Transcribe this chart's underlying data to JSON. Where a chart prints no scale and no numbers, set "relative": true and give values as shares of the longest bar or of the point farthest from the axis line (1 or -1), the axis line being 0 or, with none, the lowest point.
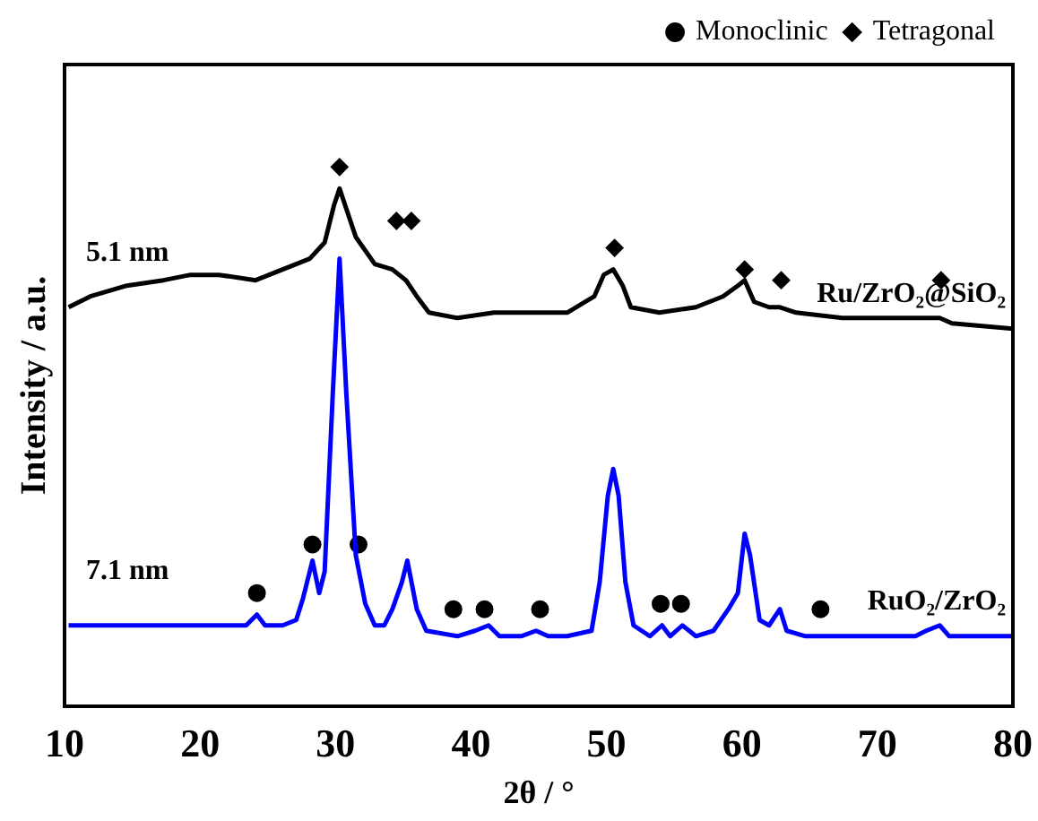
{
  "chart_data": {
    "type": "line",
    "xlabel": "2θ / °",
    "ylabel": "Intensity / a.u.",
    "xlim": [
      10,
      80
    ],
    "xticks": [
      10,
      20,
      30,
      40,
      50,
      60,
      70,
      80
    ],
    "relative": true,
    "grid": false,
    "legend": "top right",
    "line_style": "solid",
    "annotations": [
      "5.1 nm",
      "7.1 nm"
    ],
    "series": [
      {
        "name": "Ru/ZrO₂@SiO₂",
        "color": "#000000",
        "marker": "none",
        "x": [
          10.3,
          11.9,
          14.6,
          17.3,
          19.3,
          21.4,
          24.1,
          26.1,
          28.1,
          29.2,
          29.9,
          30.3,
          30.7,
          31.5,
          32.9,
          34.2,
          35.2,
          36.0,
          36.9,
          39.0,
          41.7,
          44.4,
          47.1,
          49.1,
          49.8,
          50.5,
          51.2,
          51.8,
          53.9,
          56.6,
          58.6,
          59.7,
          60.2,
          60.9,
          62.0,
          62.8,
          64.0,
          67.4,
          71.5,
          74.6,
          75.5,
          80.0
        ],
        "values": [
          0.74,
          0.76,
          0.78,
          0.79,
          0.8,
          0.8,
          0.79,
          0.81,
          0.83,
          0.86,
          0.93,
          0.96,
          0.93,
          0.87,
          0.82,
          0.81,
          0.79,
          0.76,
          0.73,
          0.72,
          0.73,
          0.73,
          0.73,
          0.76,
          0.8,
          0.81,
          0.78,
          0.74,
          0.73,
          0.74,
          0.76,
          0.78,
          0.79,
          0.75,
          0.74,
          0.74,
          0.73,
          0.72,
          0.72,
          0.72,
          0.71,
          0.7
        ]
      },
      {
        "name": "RuO₂/ZrO₂",
        "color": "#0000ff",
        "marker": "none",
        "x": [
          10.3,
          14.6,
          17.3,
          21.4,
          23.4,
          24.2,
          24.8,
          26.1,
          27.1,
          27.6,
          28.3,
          28.8,
          29.2,
          29.8,
          30.3,
          30.8,
          31.5,
          32.2,
          32.9,
          33.6,
          34.2,
          34.9,
          35.3,
          36.0,
          36.7,
          39.0,
          40.3,
          41.3,
          42.1,
          43.7,
          44.8,
          45.7,
          47.1,
          48.9,
          49.5,
          50.1,
          50.5,
          50.9,
          51.4,
          52.0,
          53.2,
          54.1,
          54.7,
          55.6,
          56.6,
          57.9,
          59.0,
          59.7,
          60.2,
          60.6,
          61.3,
          62.0,
          62.8,
          63.3,
          64.7,
          67.4,
          70.1,
          72.8,
          73.6,
          74.6,
          75.3,
          76.9,
          80.0
        ],
        "values": [
          0.15,
          0.15,
          0.15,
          0.15,
          0.15,
          0.17,
          0.15,
          0.15,
          0.16,
          0.2,
          0.27,
          0.21,
          0.25,
          0.58,
          0.83,
          0.58,
          0.28,
          0.19,
          0.15,
          0.15,
          0.18,
          0.23,
          0.27,
          0.18,
          0.14,
          0.13,
          0.14,
          0.15,
          0.13,
          0.13,
          0.14,
          0.13,
          0.13,
          0.14,
          0.23,
          0.39,
          0.44,
          0.39,
          0.23,
          0.15,
          0.13,
          0.15,
          0.13,
          0.15,
          0.13,
          0.14,
          0.18,
          0.21,
          0.32,
          0.28,
          0.16,
          0.15,
          0.18,
          0.14,
          0.13,
          0.13,
          0.13,
          0.13,
          0.14,
          0.15,
          0.13,
          0.13,
          0.13
        ]
      },
      {
        "name": "Monoclinic",
        "type": "scatter",
        "color": "#000000",
        "marker": "circle",
        "x": [
          24.2,
          28.3,
          31.7,
          38.7,
          41.0,
          45.1,
          54.0,
          55.5,
          65.8
        ],
        "values": [
          0.21,
          0.3,
          0.3,
          0.18,
          0.18,
          0.18,
          0.19,
          0.19,
          0.18
        ]
      },
      {
        "name": "Tetragonal",
        "type": "scatter",
        "color": "#000000",
        "marker": "diamond",
        "x": [
          30.3,
          34.5,
          35.6,
          50.6,
          60.2,
          62.9,
          74.7
        ],
        "values": [
          1.0,
          0.9,
          0.9,
          0.85,
          0.81,
          0.79,
          0.79
        ]
      }
    ]
  }
}
